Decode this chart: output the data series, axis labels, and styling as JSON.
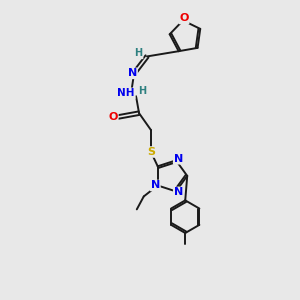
{
  "bg_color": "#e8e8e8",
  "atom_colors": {
    "C": "#1a1a1a",
    "H": "#2e8080",
    "N": "#0000ee",
    "O": "#ee0000",
    "S": "#ccaa00"
  },
  "bond_color": "#1a1a1a",
  "figsize": [
    3.0,
    3.0
  ],
  "dpi": 100,
  "xlim": [
    0,
    10
  ],
  "ylim": [
    0,
    15
  ]
}
